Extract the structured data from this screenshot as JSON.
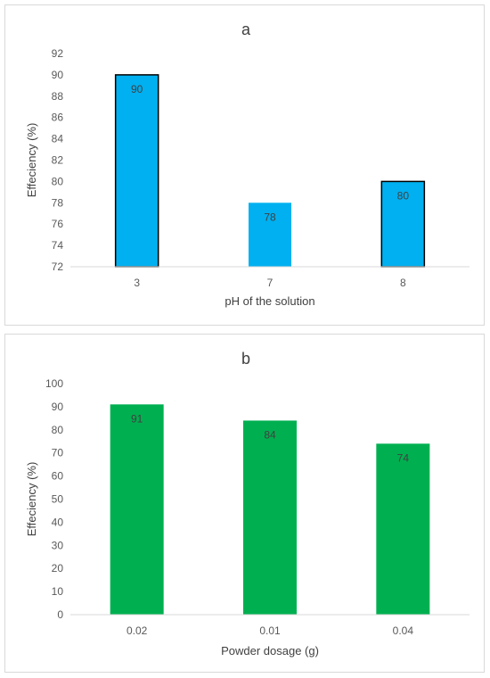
{
  "chart_data": [
    {
      "type": "bar",
      "title": "a",
      "xlabel": "pH of the solution",
      "ylabel": "Effeciency (%)",
      "categories": [
        "3",
        "7",
        "8"
      ],
      "values": [
        90,
        78,
        80
      ],
      "data_labels": [
        "90",
        "78",
        "80"
      ],
      "ylim": [
        72,
        92
      ],
      "yticks": [
        72,
        74,
        76,
        78,
        80,
        82,
        84,
        86,
        88,
        90,
        92
      ],
      "grid": false,
      "legend": "none",
      "bar_color": "#00B0F0",
      "bar_outline": [
        "#000000",
        "none",
        "#000000"
      ]
    },
    {
      "type": "bar",
      "title": "b",
      "xlabel": "Powder dosage (g)",
      "ylabel": "Effeciency (%)",
      "categories": [
        "0.02",
        "0.01",
        "0.04"
      ],
      "values": [
        91,
        84,
        74
      ],
      "data_labels": [
        "91",
        "84",
        "74"
      ],
      "ylim": [
        0,
        100
      ],
      "yticks": [
        0,
        10,
        20,
        30,
        40,
        50,
        60,
        70,
        80,
        90,
        100
      ],
      "grid": false,
      "legend": "none",
      "bar_color": "#00B050",
      "bar_outline": [
        "none",
        "none",
        "none"
      ]
    }
  ]
}
